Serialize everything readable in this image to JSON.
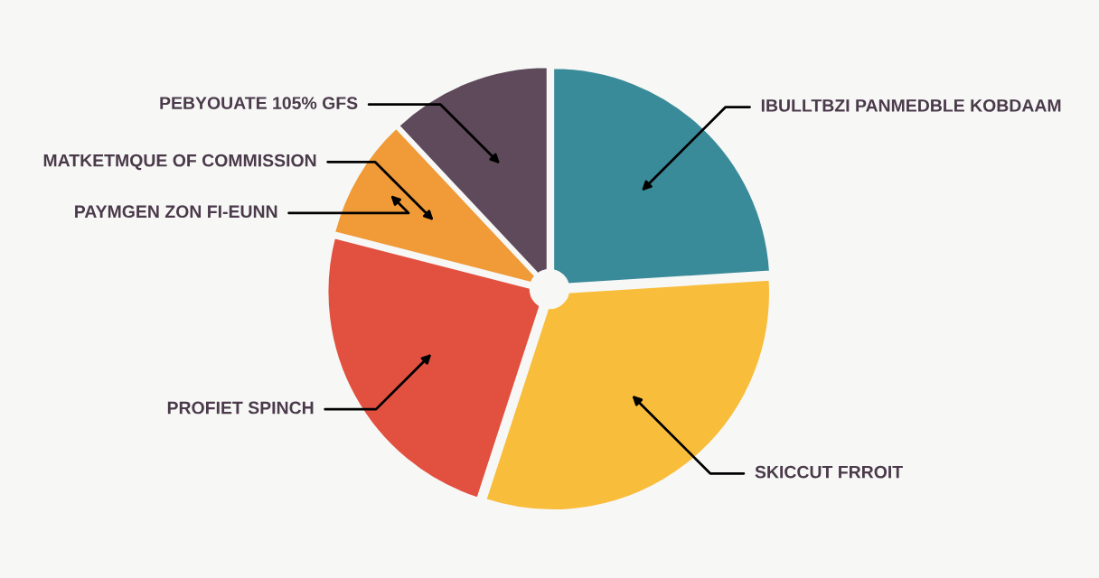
{
  "chart_data": {
    "type": "pie",
    "categories": [
      "IBULLTBZI PANMEDBLE KOBDAAM",
      "SKICCUT FRROIT",
      "PROFIET SPINCH",
      "MATKETMQUE OF COMMISSION",
      "PEBYOUATE 105% GFS"
    ],
    "values": [
      24,
      31,
      24,
      9,
      12
    ],
    "colors": [
      "#3a8b99",
      "#f8bd3b",
      "#e2503f",
      "#f09a38",
      "#5f4a5b"
    ],
    "annotations": [
      "PAYMGEN ZON FI-EUNN"
    ]
  }
}
